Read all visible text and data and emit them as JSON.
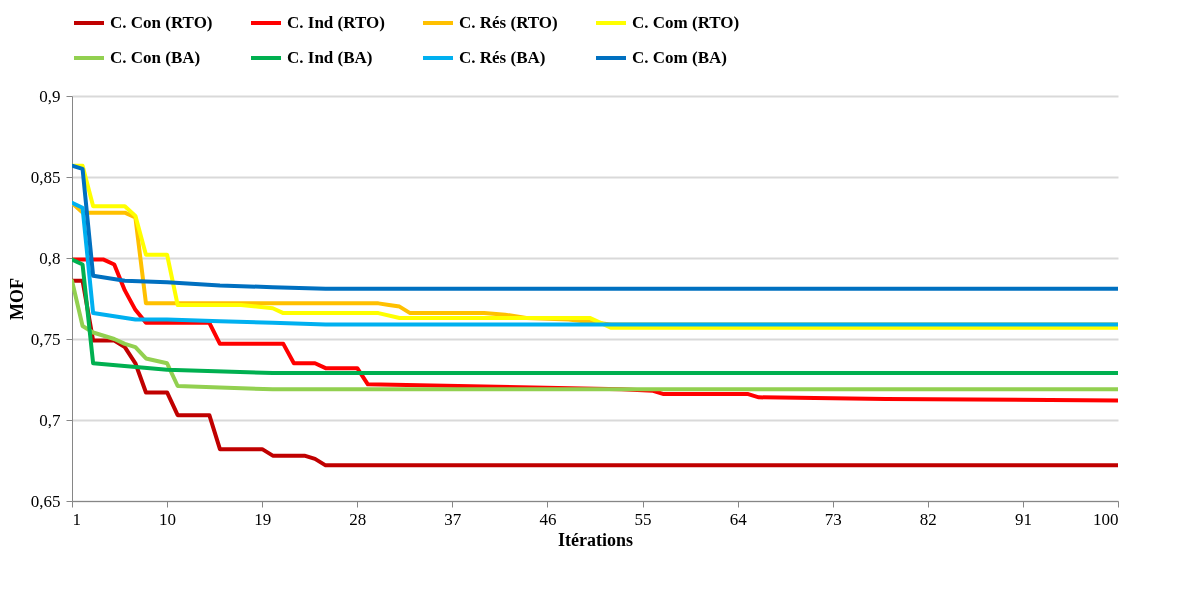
{
  "chart_data": {
    "type": "line",
    "xlabel": "Itérations",
    "ylabel": "MOF",
    "xlim": [
      1,
      100
    ],
    "xticks": [
      1,
      10,
      19,
      28,
      37,
      46,
      55,
      64,
      73,
      82,
      91,
      100
    ],
    "ylim": [
      0.65,
      0.9
    ],
    "yticks": [
      {
        "value": 0.65,
        "label": "0,65"
      },
      {
        "value": 0.7,
        "label": "0,7"
      },
      {
        "value": 0.75,
        "label": "0,75"
      },
      {
        "value": 0.8,
        "label": "0,8"
      },
      {
        "value": 0.85,
        "label": "0,85"
      },
      {
        "value": 0.9,
        "label": "0,9"
      }
    ],
    "grid": "y",
    "legend": "top",
    "line_style": "solid",
    "series": [
      {
        "name": "C. Con (RTO)",
        "color": "#c00000",
        "x": [
          1,
          2,
          3,
          5,
          6,
          7,
          8,
          10,
          11,
          14,
          15,
          19,
          20,
          23,
          24,
          25,
          100
        ],
        "values": [
          0.786,
          0.786,
          0.749,
          0.749,
          0.745,
          0.735,
          0.717,
          0.717,
          0.703,
          0.703,
          0.682,
          0.682,
          0.678,
          0.678,
          0.676,
          0.672,
          0.672
        ]
      },
      {
        "name": "C. Ind (RTO)",
        "color": "#ff0000",
        "x": [
          1,
          4,
          5,
          6,
          7,
          8,
          14,
          15,
          21,
          22,
          24,
          25,
          28,
          29,
          53,
          56,
          57,
          65,
          66,
          78,
          100
        ],
        "values": [
          0.799,
          0.799,
          0.796,
          0.78,
          0.768,
          0.76,
          0.76,
          0.747,
          0.747,
          0.735,
          0.735,
          0.732,
          0.732,
          0.722,
          0.719,
          0.718,
          0.716,
          0.716,
          0.714,
          0.713,
          0.712
        ]
      },
      {
        "name": "C. Rés (RTO)",
        "color": "#ffc000",
        "x": [
          1,
          2,
          6,
          7,
          8,
          30,
          31,
          32,
          33,
          40,
          42,
          44,
          48,
          52,
          100
        ],
        "values": [
          0.834,
          0.828,
          0.828,
          0.825,
          0.772,
          0.772,
          0.771,
          0.77,
          0.766,
          0.766,
          0.765,
          0.763,
          0.762,
          0.759,
          0.759
        ]
      },
      {
        "name": "C. Com (RTO)",
        "color": "#ffff00",
        "x": [
          1,
          2,
          3,
          6,
          7,
          8,
          10,
          11,
          17,
          20,
          21,
          30,
          32,
          50,
          52,
          100
        ],
        "values": [
          0.857,
          0.857,
          0.832,
          0.832,
          0.826,
          0.802,
          0.802,
          0.771,
          0.771,
          0.769,
          0.766,
          0.766,
          0.763,
          0.763,
          0.757,
          0.757
        ]
      },
      {
        "name": "C. Con (BA)",
        "color": "#92d050",
        "x": [
          1,
          2,
          3,
          5,
          6,
          7,
          8,
          10,
          11,
          15,
          20,
          100
        ],
        "values": [
          0.786,
          0.758,
          0.754,
          0.75,
          0.747,
          0.745,
          0.738,
          0.735,
          0.721,
          0.72,
          0.719,
          0.719
        ]
      },
      {
        "name": "C. Ind (BA)",
        "color": "#00b050",
        "x": [
          1,
          2,
          3,
          10,
          20,
          30,
          100
        ],
        "values": [
          0.799,
          0.796,
          0.735,
          0.731,
          0.729,
          0.729,
          0.729
        ]
      },
      {
        "name": "C. Rés (BA)",
        "color": "#00b0f0",
        "x": [
          1,
          2,
          3,
          5,
          7,
          10,
          15,
          20,
          25,
          100
        ],
        "values": [
          0.834,
          0.831,
          0.766,
          0.764,
          0.762,
          0.762,
          0.761,
          0.76,
          0.759,
          0.759
        ]
      },
      {
        "name": "C. Com (BA)",
        "color": "#0070c0",
        "x": [
          1,
          2,
          3,
          6,
          10,
          15,
          20,
          25,
          100
        ],
        "values": [
          0.857,
          0.855,
          0.789,
          0.786,
          0.785,
          0.783,
          0.782,
          0.781,
          0.781
        ]
      }
    ]
  }
}
